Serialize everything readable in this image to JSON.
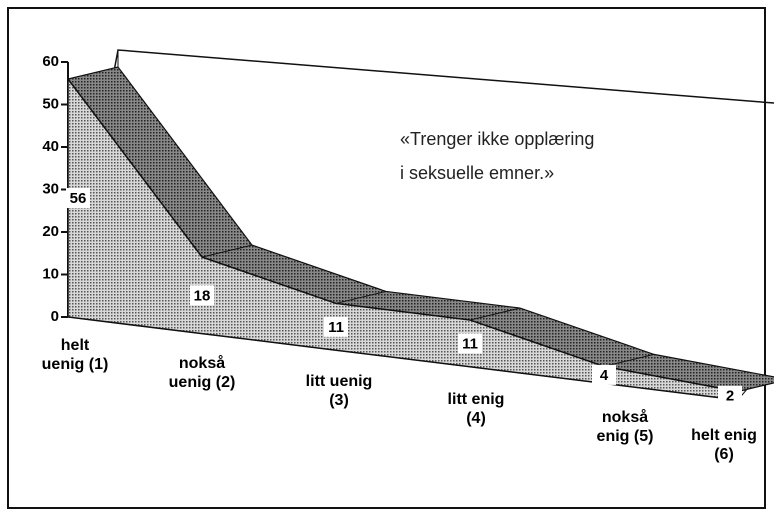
{
  "chart_data": {
    "type": "area3d",
    "annotation": "«Trenger ikke opplæring i seksuelle emner.»",
    "categories": [
      "helt uenig (1)",
      "nokså uenig (2)",
      "litt uenig (3)",
      "litt enig (4)",
      "nokså enig (5)",
      "helt enig (6)"
    ],
    "values": [
      56,
      18,
      11,
      11,
      4,
      2
    ],
    "color": "#6a6a6a",
    "ylim": [
      0,
      60
    ],
    "yticks": [
      0,
      10,
      20,
      30,
      40,
      50,
      60
    ]
  }
}
